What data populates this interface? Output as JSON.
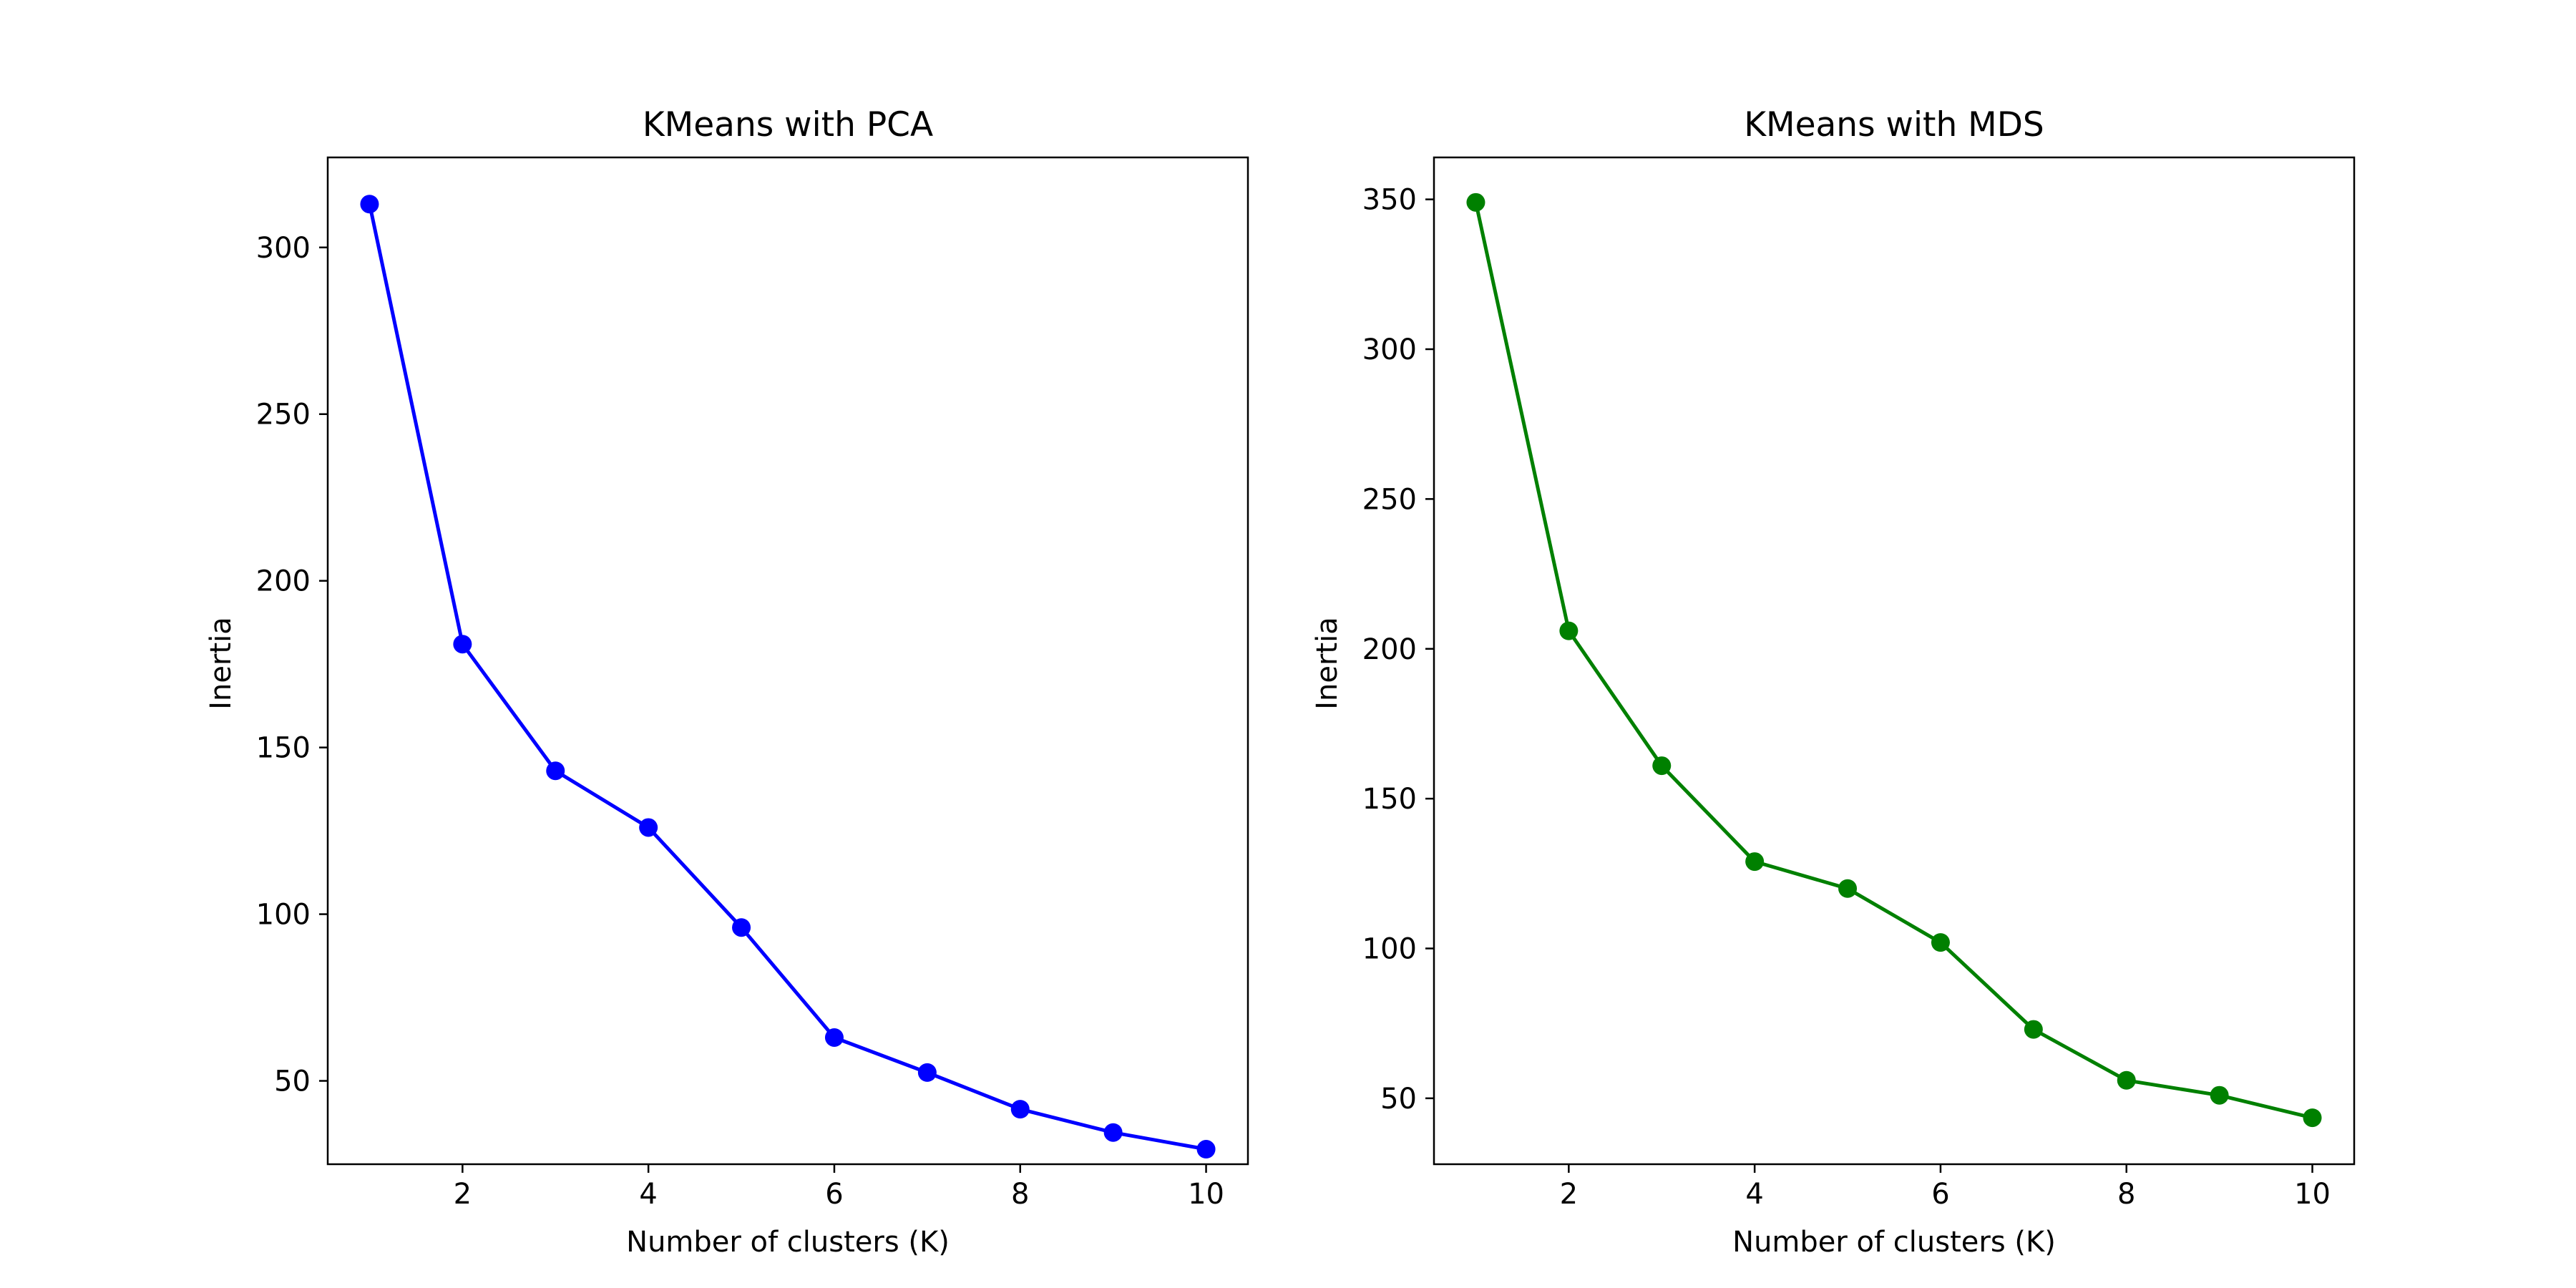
{
  "chart_data": [
    {
      "type": "line",
      "title": "KMeans with PCA",
      "xlabel": "Number of clusters (K)",
      "ylabel": "Inertia",
      "x": [
        1,
        2,
        3,
        4,
        5,
        6,
        7,
        8,
        9,
        10
      ],
      "series": [
        {
          "name": "PCA",
          "color": "#0000ff",
          "marker": "circle",
          "values": [
            313,
            181,
            143,
            126,
            96,
            63,
            52.5,
            41.5,
            34.5,
            29.5
          ]
        }
      ],
      "xlim": [
        0.55,
        10.45
      ],
      "ylim": [
        25,
        327
      ],
      "xticks": [
        2,
        4,
        6,
        8,
        10
      ],
      "yticks": [
        50,
        100,
        150,
        200,
        250,
        300
      ],
      "grid": false
    },
    {
      "type": "line",
      "title": "KMeans with MDS",
      "xlabel": "Number of clusters (K)",
      "ylabel": "Inertia",
      "x": [
        1,
        2,
        3,
        4,
        5,
        6,
        7,
        8,
        9,
        10
      ],
      "series": [
        {
          "name": "MDS",
          "color": "#008000",
          "marker": "circle",
          "values": [
            349,
            206,
            161,
            129,
            120,
            102,
            73,
            56,
            51,
            43.5
          ]
        }
      ],
      "xlim": [
        0.55,
        10.45
      ],
      "ylim": [
        28,
        364
      ],
      "xticks": [
        2,
        4,
        6,
        8,
        10
      ],
      "yticks": [
        50,
        100,
        150,
        200,
        250,
        300,
        350
      ],
      "grid": false
    }
  ]
}
